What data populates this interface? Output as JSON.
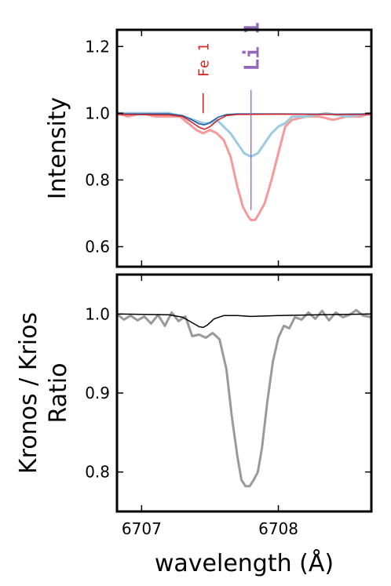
{
  "chart_data": [
    {
      "type": "line",
      "ylabel": "Intensity",
      "xlim": [
        6706.82,
        6708.68
      ],
      "ylim": [
        0.54,
        1.25
      ],
      "yticks": [
        0.6,
        0.8,
        1.0,
        1.2
      ],
      "ytick_labels": [
        "0.6",
        "0.8",
        "1.0",
        "1.2"
      ],
      "xticks": [
        6707,
        6708
      ],
      "annotations": [
        {
          "text": "Fe 1",
          "x": 6707.45,
          "y_label": 1.16,
          "line": [
            1.06,
            1.0
          ],
          "color": "#d62728"
        },
        {
          "text": "Li 1",
          "x": 6707.8,
          "y_label": 1.2,
          "line": [
            1.07,
            0.71
          ],
          "color": "#9467bd"
        }
      ],
      "series": [
        {
          "color": "#f7999a",
          "width": 3,
          "x": [
            6706.82,
            6706.9,
            6707.0,
            6707.1,
            6707.2,
            6707.28,
            6707.34,
            6707.4,
            6707.45,
            6707.5,
            6707.55,
            6707.6,
            6707.65,
            6707.7,
            6707.74,
            6707.78,
            6707.8,
            6707.83,
            6707.86,
            6707.9,
            6707.95,
            6708.0,
            6708.05,
            6708.1,
            6708.2,
            6708.3,
            6708.4,
            6708.5,
            6708.6,
            6708.68
          ],
          "y": [
            1.0,
            0.99,
            1.0,
            0.99,
            0.99,
            0.99,
            0.97,
            0.95,
            0.94,
            0.95,
            0.94,
            0.92,
            0.87,
            0.78,
            0.72,
            0.69,
            0.68,
            0.68,
            0.7,
            0.73,
            0.8,
            0.88,
            0.96,
            0.98,
            0.99,
            0.99,
            0.98,
            0.99,
            0.99,
            1.0
          ]
        },
        {
          "color": "#9ecae1",
          "width": 3,
          "x": [
            6706.82,
            6707.0,
            6707.2,
            6707.3,
            6707.38,
            6707.45,
            6707.5,
            6707.55,
            6707.6,
            6707.65,
            6707.7,
            6707.75,
            6707.8,
            6707.85,
            6707.9,
            6707.95,
            6708.0,
            6708.05,
            6708.1,
            6708.2,
            6708.35,
            6708.5,
            6708.68
          ],
          "y": [
            1.0,
            1.0,
            1.0,
            0.99,
            0.98,
            0.97,
            0.97,
            0.98,
            0.96,
            0.94,
            0.91,
            0.88,
            0.87,
            0.88,
            0.91,
            0.94,
            0.96,
            0.97,
            0.99,
            0.99,
            1.0,
            0.99,
            1.0
          ]
        },
        {
          "color": "#1f5fa8",
          "width": 1.6,
          "x": [
            6706.82,
            6707.2,
            6707.3,
            6707.36,
            6707.42,
            6707.46,
            6707.5,
            6707.56,
            6707.62,
            6707.7,
            6708.0,
            6708.4,
            6708.68
          ],
          "y": [
            0.998,
            0.998,
            0.993,
            0.982,
            0.968,
            0.965,
            0.972,
            0.988,
            0.996,
            0.998,
            0.998,
            0.997,
            0.998
          ]
        },
        {
          "color": "#d62728",
          "width": 1.6,
          "x": [
            6706.82,
            6707.2,
            6707.3,
            6707.36,
            6707.42,
            6707.46,
            6707.5,
            6707.56,
            6707.62,
            6707.7,
            6708.0,
            6708.4,
            6708.68
          ],
          "y": [
            0.996,
            0.995,
            0.99,
            0.975,
            0.958,
            0.952,
            0.96,
            0.98,
            0.993,
            0.996,
            0.997,
            0.996,
            0.996
          ]
        }
      ]
    },
    {
      "type": "line",
      "ylabel": "Kronos / Krios\nRatio",
      "xlabel": "wavelength (Å)",
      "xlim": [
        6706.82,
        6708.68
      ],
      "ylim": [
        0.75,
        1.05
      ],
      "yticks": [
        0.8,
        0.9,
        1.0
      ],
      "ytick_labels": [
        "0.8",
        "0.9",
        "1.0"
      ],
      "xticks": [
        6707,
        6708
      ],
      "xtick_labels": [
        "6707",
        "6708"
      ],
      "series": [
        {
          "color": "#9a9a9a",
          "width": 3,
          "x": [
            6706.82,
            6706.87,
            6706.92,
            6706.97,
            6707.02,
            6707.07,
            6707.12,
            6707.17,
            6707.22,
            6707.27,
            6707.32,
            6707.37,
            6707.42,
            6707.47,
            6707.52,
            6707.57,
            6707.62,
            6707.66,
            6707.7,
            6707.73,
            6707.76,
            6707.79,
            6707.82,
            6707.85,
            6707.88,
            6707.92,
            6707.96,
            6708.0,
            6708.04,
            6708.08,
            6708.12,
            6708.17,
            6708.22,
            6708.27,
            6708.32,
            6708.37,
            6708.42,
            6708.47,
            6708.52,
            6708.57,
            6708.62,
            6708.68
          ],
          "y": [
            1.0,
            0.993,
            0.998,
            0.992,
            0.997,
            0.988,
            0.999,
            0.985,
            1.002,
            0.991,
            0.997,
            0.972,
            0.974,
            0.97,
            0.976,
            0.968,
            0.93,
            0.87,
            0.82,
            0.79,
            0.782,
            0.782,
            0.79,
            0.8,
            0.83,
            0.89,
            0.94,
            0.97,
            0.985,
            0.982,
            0.996,
            0.993,
            1.002,
            0.994,
            1.004,
            0.992,
            1.002,
            0.996,
            0.999,
            1.005,
            0.998,
            0.996
          ]
        },
        {
          "color": "#000000",
          "width": 1.5,
          "x": [
            6706.82,
            6707.2,
            6707.3,
            6707.36,
            6707.42,
            6707.45,
            6707.48,
            6707.53,
            6707.6,
            6707.7,
            6707.8,
            6708.0,
            6708.3,
            6708.68
          ],
          "y": [
            1.0,
            0.999,
            0.996,
            0.99,
            0.984,
            0.983,
            0.986,
            0.994,
            0.998,
            0.998,
            0.997,
            0.998,
            0.999,
            1.0
          ]
        }
      ]
    }
  ]
}
